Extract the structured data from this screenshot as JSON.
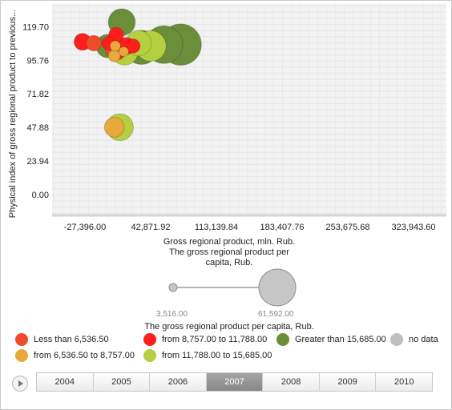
{
  "chart_data": {
    "type": "scatter",
    "title": "",
    "xlabel": "Gross regional product, mln. Rub.",
    "ylabel": "Physical index of gross regional product to previous...",
    "size_label": "The gross regional product per capita, Rub.",
    "x_ticks": [
      "-27,396.00",
      "42,871.92",
      "113,139.84",
      "183,407.76",
      "253,675.68",
      "323,943.60"
    ],
    "y_ticks": [
      "119.70",
      "95.76",
      "71.82",
      "47.88",
      "23.94",
      "0.00"
    ],
    "xlim": [
      -62530,
      359078
    ],
    "ylim": [
      -15,
      136
    ],
    "grid": true,
    "size_scale": {
      "min_label": "3,516.00",
      "max_label": "61,592.00",
      "min": 3516,
      "max": 61592
    },
    "legend_placement": "bottom",
    "legend": [
      {
        "label": "Less than 6,536.50",
        "color": "#f04a2c"
      },
      {
        "label": "from 8,757.00 to 11,788.00",
        "color": "#ff1d1d"
      },
      {
        "label": "Greater than 15,685.00",
        "color": "#6b8e3a"
      },
      {
        "label": "no data",
        "color": "#bfbfbf"
      },
      {
        "label": "from 6,536.50 to 8,757.00",
        "color": "#e8a83a"
      },
      {
        "label": "from 11,788.00 to 15,685.00",
        "color": "#b4cf3f"
      }
    ],
    "points": [
      {
        "x": 12000,
        "y": 123,
        "size": 30000,
        "group": "Greater than 15,685.00"
      },
      {
        "x": 75000,
        "y": 107,
        "size": 50000,
        "group": "Greater than 15,685.00"
      },
      {
        "x": 57000,
        "y": 107,
        "size": 45000,
        "group": "Greater than 15,685.00"
      },
      {
        "x": 33000,
        "y": 105,
        "size": 40000,
        "group": "Greater than 15,685.00"
      },
      {
        "x": 43000,
        "y": 106,
        "size": 35000,
        "group": "from 11,788.00 to 15,685.00"
      },
      {
        "x": 15000,
        "y": 102,
        "size": 30000,
        "group": "from 11,788.00 to 15,685.00"
      },
      {
        "x": 30000,
        "y": 108,
        "size": 28000,
        "group": "from 11,788.00 to 15,685.00"
      },
      {
        "x": -3000,
        "y": 106,
        "size": 25000,
        "group": "Greater than 15,685.00"
      },
      {
        "x": 10000,
        "y": 48,
        "size": 30000,
        "group": "from 11,788.00 to 15,685.00"
      },
      {
        "x": 4000,
        "y": 48,
        "size": 20000,
        "group": "from 6,536.50 to 8,757.00"
      },
      {
        "x": -18000,
        "y": 108,
        "size": 14000,
        "group": "Less than 6,536.50"
      },
      {
        "x": -30000,
        "y": 109,
        "size": 16000,
        "group": "from 8,757.00 to 11,788.00"
      },
      {
        "x": 6000,
        "y": 114,
        "size": 13000,
        "group": "from 8,757.00 to 11,788.00"
      },
      {
        "x": 17000,
        "y": 106,
        "size": 16000,
        "group": "from 8,757.00 to 11,788.00"
      },
      {
        "x": 24000,
        "y": 106,
        "size": 12000,
        "group": "from 8,757.00 to 11,788.00"
      },
      {
        "x": 2000,
        "y": 103,
        "size": 12000,
        "group": "Less than 6,536.50"
      },
      {
        "x": -2000,
        "y": 108,
        "size": 11000,
        "group": "from 8,757.00 to 11,788.00"
      },
      {
        "x": 8000,
        "y": 101,
        "size": 11000,
        "group": "from 8,757.00 to 11,788.00"
      },
      {
        "x": 4000,
        "y": 99,
        "size": 9000,
        "group": "from 6,536.50 to 8,757.00"
      },
      {
        "x": 5000,
        "y": 106,
        "size": 7000,
        "group": "from 6,536.50 to 8,757.00"
      },
      {
        "x": 14000,
        "y": 102,
        "size": 6000,
        "group": "from 6,536.50 to 8,757.00"
      }
    ]
  },
  "timeline": {
    "years": [
      "2004",
      "2005",
      "2006",
      "2007",
      "2008",
      "2009",
      "2010"
    ],
    "selected": "2007"
  }
}
